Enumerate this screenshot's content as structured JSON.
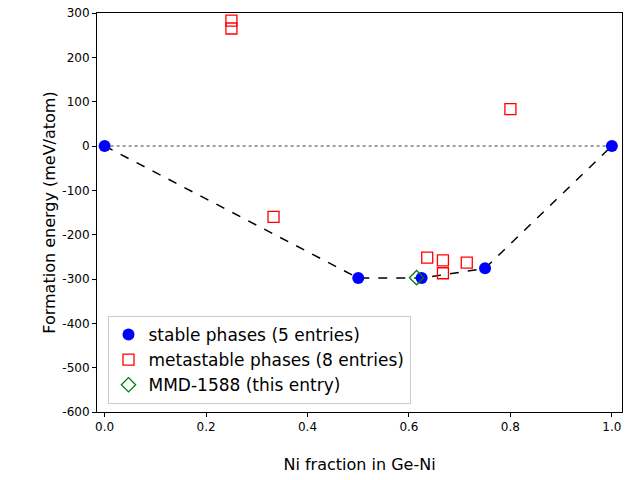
{
  "chart_data": {
    "type": "scatter",
    "x_label": "Ni fraction in Ge-Ni",
    "y_label": "Formation energy (meV/atom)",
    "xlim": [
      -0.015,
      1.02
    ],
    "ylim": [
      -600,
      300
    ],
    "xticks": [
      {
        "value": 0,
        "label": "0.0"
      },
      0.2,
      0.4,
      0.6,
      0.8,
      {
        "value": 1,
        "label": "1.0"
      }
    ],
    "yticks": [
      -600,
      -500,
      -400,
      -300,
      -200,
      -100,
      0,
      100,
      200,
      300
    ],
    "grid": false,
    "legend": "lower left",
    "zero_line": {
      "y": 0,
      "x": [
        0,
        1
      ],
      "color": "gray",
      "line_style": "dotted"
    },
    "series": [
      {
        "name": "stable phases (5 entries)",
        "color": "#0000ff",
        "marker": "circle",
        "line_style": "dashed",
        "x": [
          0,
          0.5,
          0.625,
          0.75,
          1
        ],
        "values": [
          0,
          -298,
          -298,
          -276,
          0
        ]
      },
      {
        "name": "metastable phases (8 entries)",
        "color": "#ff0000",
        "marker": "square-open",
        "x": [
          0.25,
          0.25,
          0.333,
          0.636,
          0.667,
          0.667,
          0.714,
          0.8
        ],
        "values": [
          283,
          265,
          -160,
          -252,
          -258,
          -287,
          -263,
          83
        ]
      },
      {
        "name": "MMD-1588 (this entry)",
        "color": "#008000",
        "marker": "diamond-open",
        "x": [
          0.615
        ],
        "values": [
          -297
        ]
      }
    ]
  }
}
